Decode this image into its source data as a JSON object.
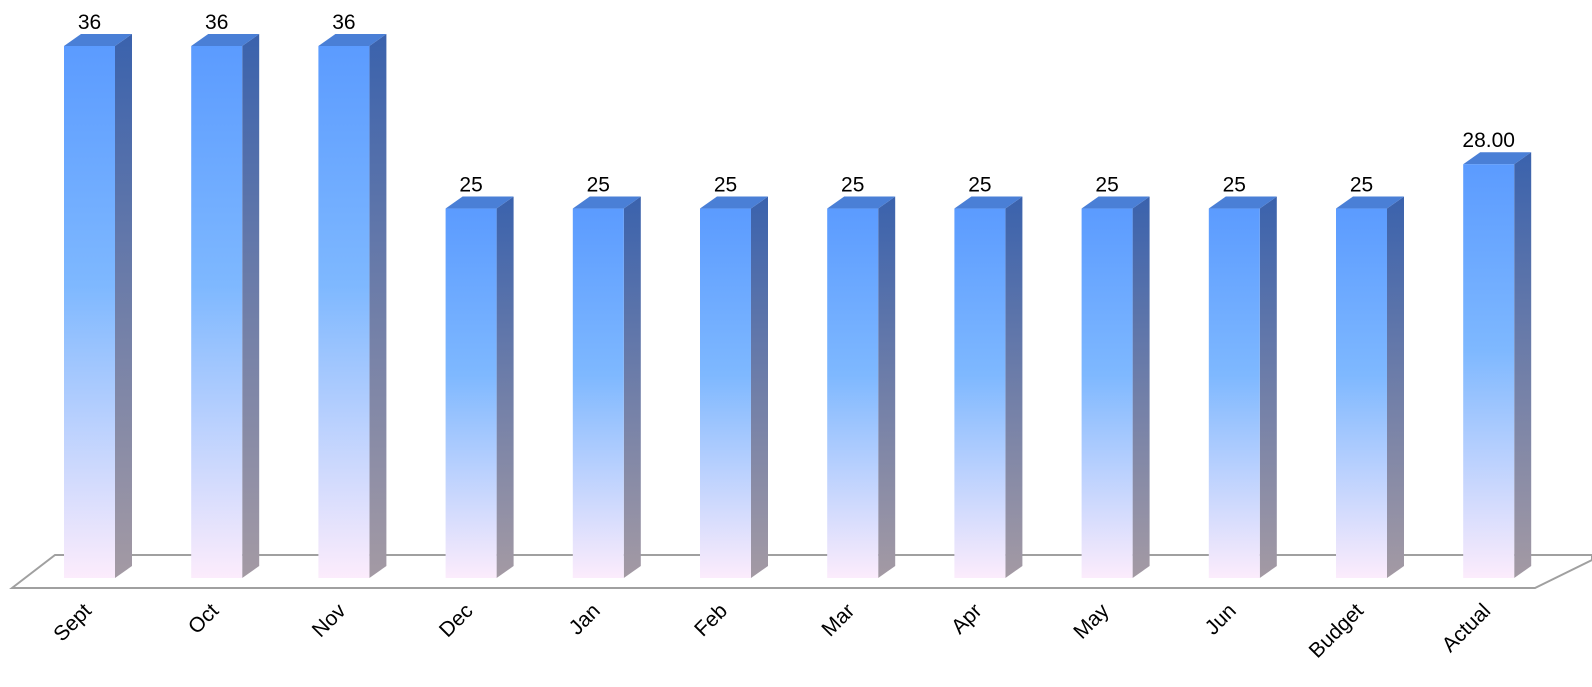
{
  "chart_data": {
    "type": "bar",
    "title": "",
    "xlabel": "",
    "ylabel": "",
    "categories": [
      "Sept",
      "Oct",
      "Nov",
      "Dec",
      "Jan",
      "Feb",
      "Mar",
      "Apr",
      "May",
      "Jun",
      "Budget",
      "Actual"
    ],
    "values": [
      36,
      36,
      36,
      25,
      25,
      25,
      25,
      25,
      25,
      25,
      25,
      28
    ],
    "data_labels": [
      "36",
      "36",
      "36",
      "25",
      "25",
      "25",
      "25",
      "25",
      "25",
      "25",
      "25",
      "28.00"
    ],
    "ylim": [
      0,
      36
    ],
    "grid": false,
    "legend": "none",
    "style": "3d-column",
    "colors": {
      "bar_top": "#5b9bff",
      "bar_mid": "#7eb8ff",
      "bar_bottom": "#fcecfc",
      "side_top": "#3a62ad",
      "side_bottom": "#a49aa4",
      "cap": "#4a7fd6",
      "floor": "#a0a0a0"
    }
  }
}
